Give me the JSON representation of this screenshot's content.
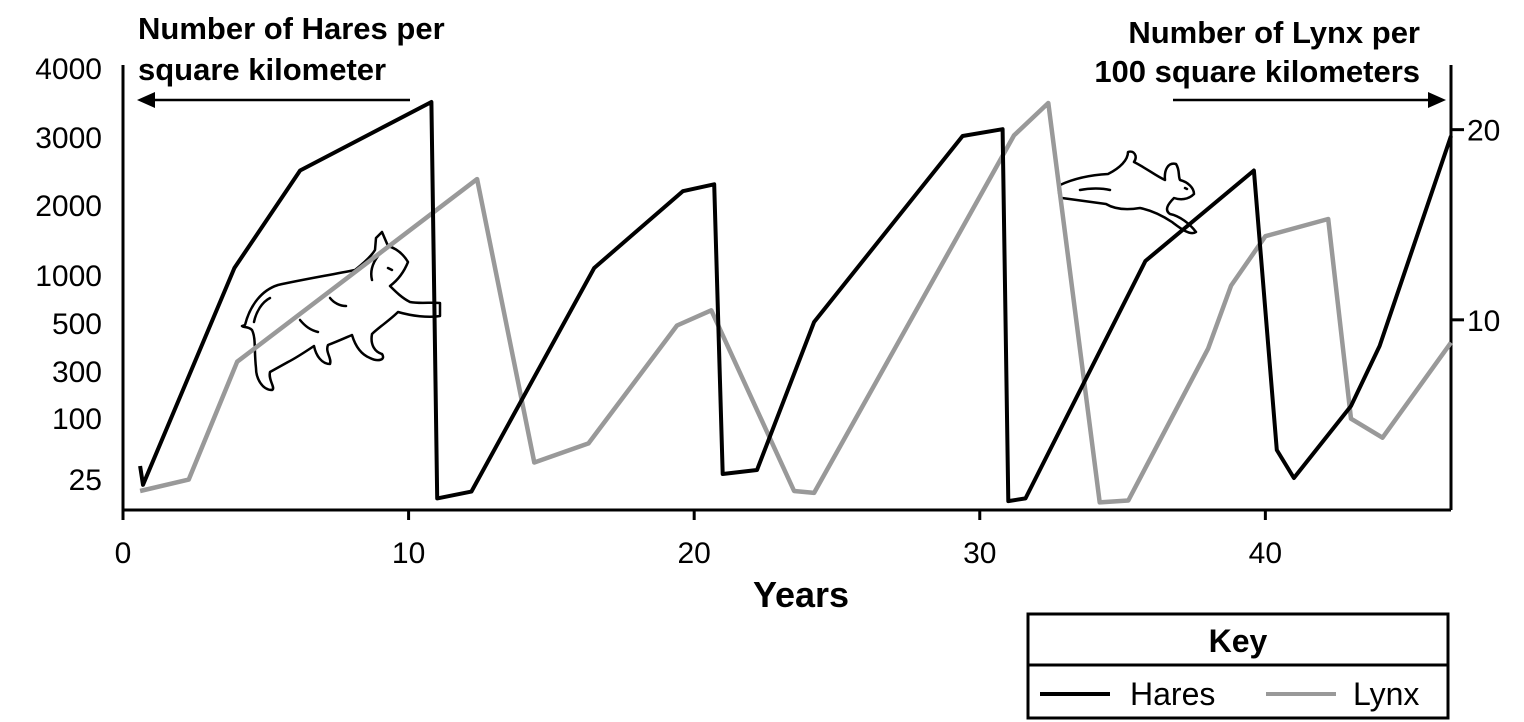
{
  "chart_data": {
    "type": "line",
    "left_axis_title": [
      "Number of Hares per",
      "square kilometer"
    ],
    "right_axis_title": [
      "Number of Lynx per",
      "100 square kilometers"
    ],
    "xlabel": "Years",
    "xlim": [
      0,
      46.5
    ],
    "x_ticks": [
      0,
      10,
      20,
      30,
      40
    ],
    "left_ticks": [
      "4000",
      "3000",
      "2000",
      "1000",
      "500",
      "300",
      "100",
      "25"
    ],
    "right_ticks": [
      10,
      20
    ],
    "right_ylim": [
      0,
      23.4
    ],
    "legend": {
      "title": "Key",
      "position": "bottom-right",
      "entries": [
        "Hares",
        "Lynx"
      ]
    },
    "series": [
      {
        "name": "Hares",
        "color": "#000000",
        "y_axis": "left",
        "x": [
          0.6,
          0.7,
          3.9,
          6.2,
          10.8,
          11.0,
          12.2,
          16.5,
          19.6,
          20.7,
          21.0,
          22.2,
          24.2,
          29.4,
          30.8,
          31.0,
          31.6,
          35.8,
          39.6,
          40.4,
          41.0,
          43.0,
          44.0,
          46.5
        ],
        "y": [
          40,
          20,
          1100,
          2500,
          3500,
          10,
          15,
          1100,
          2200,
          2300,
          30,
          35,
          500,
          3000,
          3100,
          8,
          10,
          1200,
          2500,
          60,
          25,
          150,
          400,
          3000
        ]
      },
      {
        "name": "Lynx",
        "color": "#999999",
        "y_axis": "right",
        "x": [
          0.6,
          2.3,
          4.0,
          12.4,
          14.4,
          16.3,
          19.4,
          20.6,
          23.5,
          24.2,
          31.2,
          32.4,
          34.2,
          35.2,
          38.0,
          38.8,
          40.0,
          42.2,
          43.0,
          44.1,
          46.5
        ],
        "y": [
          1.0,
          1.6,
          7.8,
          17.4,
          2.5,
          3.5,
          9.7,
          10.5,
          1.0,
          0.9,
          19.7,
          21.4,
          0.4,
          0.5,
          8.5,
          11.8,
          14.4,
          15.3,
          4.8,
          3.8,
          8.8
        ]
      }
    ]
  }
}
